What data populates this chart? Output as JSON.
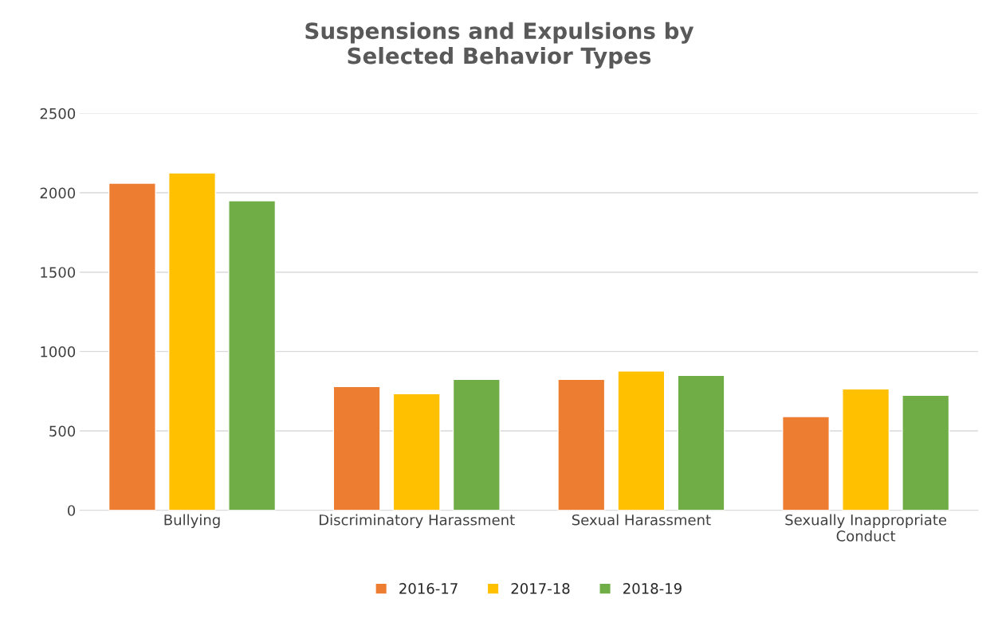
{
  "chart_data": {
    "type": "bar",
    "title": "Suspensions and Expulsions by\nSelected Behavior Types",
    "categories": [
      "Bullying",
      "Discriminatory Harassment",
      "Sexual Harassment",
      "Sexually Inappropriate\nConduct"
    ],
    "series": [
      {
        "name": "2016-17",
        "color": "#ed7d31",
        "values": [
          2060,
          780,
          825,
          590
        ]
      },
      {
        "name": "2017-18",
        "color": "#ffc000",
        "values": [
          2125,
          735,
          878,
          765
        ]
      },
      {
        "name": "2018-19",
        "color": "#70ad47",
        "values": [
          1950,
          825,
          850,
          725
        ]
      }
    ],
    "ylim": [
      0,
      2500
    ],
    "yticks": [
      0,
      500,
      1000,
      1500,
      2000,
      2500
    ],
    "grid": "y",
    "legend": "bottom"
  }
}
